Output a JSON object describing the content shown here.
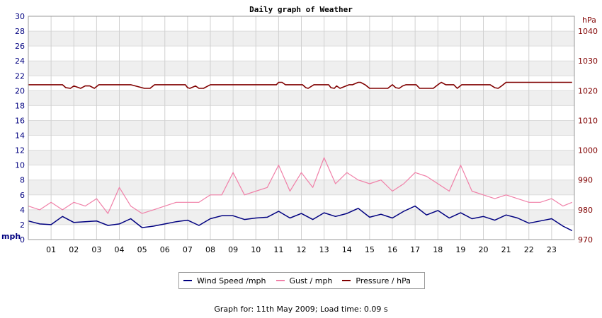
{
  "chart_data": {
    "type": "line",
    "title": "Daily graph of Weather",
    "x_ticks": [
      "01",
      "02",
      "03",
      "04",
      "05",
      "06",
      "07",
      "08",
      "09",
      "10",
      "11",
      "12",
      "13",
      "14",
      "15",
      "16",
      "17",
      "18",
      "19",
      "20",
      "21",
      "22",
      "23"
    ],
    "x_range": [
      0,
      24
    ],
    "grid": true,
    "left_axis": {
      "unit": "mph",
      "range": [
        0,
        30
      ],
      "ticks": [
        0,
        2,
        4,
        6,
        8,
        10,
        12,
        14,
        16,
        18,
        20,
        22,
        24,
        26,
        28,
        30
      ]
    },
    "right_axis": {
      "unit": "hPa",
      "range": [
        970,
        1045
      ],
      "ticks": [
        970,
        980,
        990,
        1000,
        1010,
        1020,
        1030,
        1040
      ]
    },
    "series": [
      {
        "name": "Wind Speed /mph",
        "axis": "left",
        "color": "#000080",
        "x": [
          0,
          0.5,
          1,
          1.5,
          2,
          2.5,
          3,
          3.5,
          4,
          4.5,
          5,
          5.5,
          6,
          6.5,
          7,
          7.5,
          8,
          8.5,
          9,
          9.5,
          10,
          10.5,
          11,
          11.5,
          12,
          12.5,
          13,
          13.5,
          14,
          14.5,
          15,
          15.5,
          16,
          16.5,
          17,
          17.5,
          18,
          18.5,
          19,
          19.5,
          20,
          20.5,
          21,
          21.5,
          22,
          22.5,
          23,
          23.5,
          23.9
        ],
        "values": [
          2.5,
          2.1,
          2.0,
          3.1,
          2.3,
          2.4,
          2.5,
          1.9,
          2.1,
          2.8,
          1.6,
          1.8,
          2.1,
          2.4,
          2.6,
          1.9,
          2.8,
          3.2,
          3.2,
          2.7,
          2.9,
          3.0,
          3.8,
          2.9,
          3.5,
          2.7,
          3.6,
          3.1,
          3.5,
          4.2,
          3.0,
          3.4,
          2.9,
          3.8,
          4.5,
          3.3,
          3.9,
          2.9,
          3.6,
          2.8,
          3.1,
          2.6,
          3.3,
          2.9,
          2.2,
          2.5,
          2.8,
          1.8,
          1.2
        ]
      },
      {
        "name": "Gust / mph",
        "axis": "left",
        "color": "#f080a8",
        "x": [
          0,
          0.5,
          1,
          1.5,
          2,
          2.5,
          3,
          3.5,
          4,
          4.5,
          5,
          5.5,
          6,
          6.5,
          7,
          7.5,
          8,
          8.5,
          9,
          9.5,
          10,
          10.5,
          11,
          11.5,
          12,
          12.5,
          13,
          13.5,
          14,
          14.5,
          15,
          15.5,
          16,
          16.5,
          17,
          17.5,
          18,
          18.5,
          19,
          19.5,
          20,
          20.5,
          21,
          21.5,
          22,
          22.5,
          23,
          23.5,
          23.9
        ],
        "values": [
          4.5,
          4.0,
          5.0,
          4.0,
          5.0,
          4.5,
          5.5,
          3.5,
          7.0,
          4.5,
          3.5,
          4.0,
          4.5,
          5.0,
          5.0,
          5.0,
          6.0,
          6.0,
          9.0,
          6.0,
          6.5,
          7.0,
          10.0,
          6.5,
          9.0,
          7.0,
          11.0,
          7.5,
          9.0,
          8.0,
          7.5,
          8.0,
          6.5,
          7.5,
          9.0,
          8.5,
          7.5,
          6.5,
          10.0,
          6.5,
          6.0,
          5.5,
          6.0,
          5.5,
          5.0,
          5.0,
          5.5,
          4.5,
          5.0
        ]
      },
      {
        "name": "Pressure / hPa",
        "axis": "right",
        "color": "#800000",
        "x": [
          0,
          1.5,
          1.65,
          1.85,
          2.0,
          2.3,
          2.5,
          2.7,
          2.9,
          3.1,
          4.5,
          5.0,
          5.1,
          5.35,
          5.55,
          6.9,
          7.0,
          7.1,
          7.35,
          7.5,
          7.7,
          7.9,
          8.0,
          10.9,
          11.0,
          11.15,
          11.3,
          12.05,
          12.2,
          12.3,
          12.55,
          13.2,
          13.3,
          13.45,
          13.55,
          13.7,
          14.1,
          14.25,
          14.5,
          14.6,
          14.8,
          15.0,
          15.8,
          16.0,
          16.15,
          16.3,
          16.45,
          16.6,
          17.05,
          17.2,
          17.8,
          18.0,
          18.15,
          18.35,
          18.7,
          18.85,
          19.05,
          20.3,
          20.5,
          20.65,
          20.8,
          21.0,
          23.9
        ],
        "values": [
          1022,
          1022,
          1021,
          1020.8,
          1021.6,
          1020.8,
          1021.6,
          1021.6,
          1020.8,
          1022,
          1022,
          1021,
          1020.8,
          1020.8,
          1022,
          1022,
          1021,
          1020.8,
          1021.6,
          1020.8,
          1020.8,
          1021.6,
          1022,
          1022,
          1022.8,
          1022.8,
          1022,
          1022,
          1021,
          1020.8,
          1022,
          1022,
          1021,
          1020.8,
          1021.6,
          1020.8,
          1022,
          1022,
          1022.8,
          1022.8,
          1022,
          1020.8,
          1020.8,
          1022,
          1021,
          1020.8,
          1021.6,
          1022,
          1022,
          1020.8,
          1020.8,
          1022,
          1022.8,
          1022,
          1022,
          1020.8,
          1022,
          1022,
          1021,
          1020.8,
          1021.6,
          1022.8,
          1022.8
        ]
      }
    ]
  },
  "footer": "Graph for: 11th May 2009; Load time: 0.09 s"
}
